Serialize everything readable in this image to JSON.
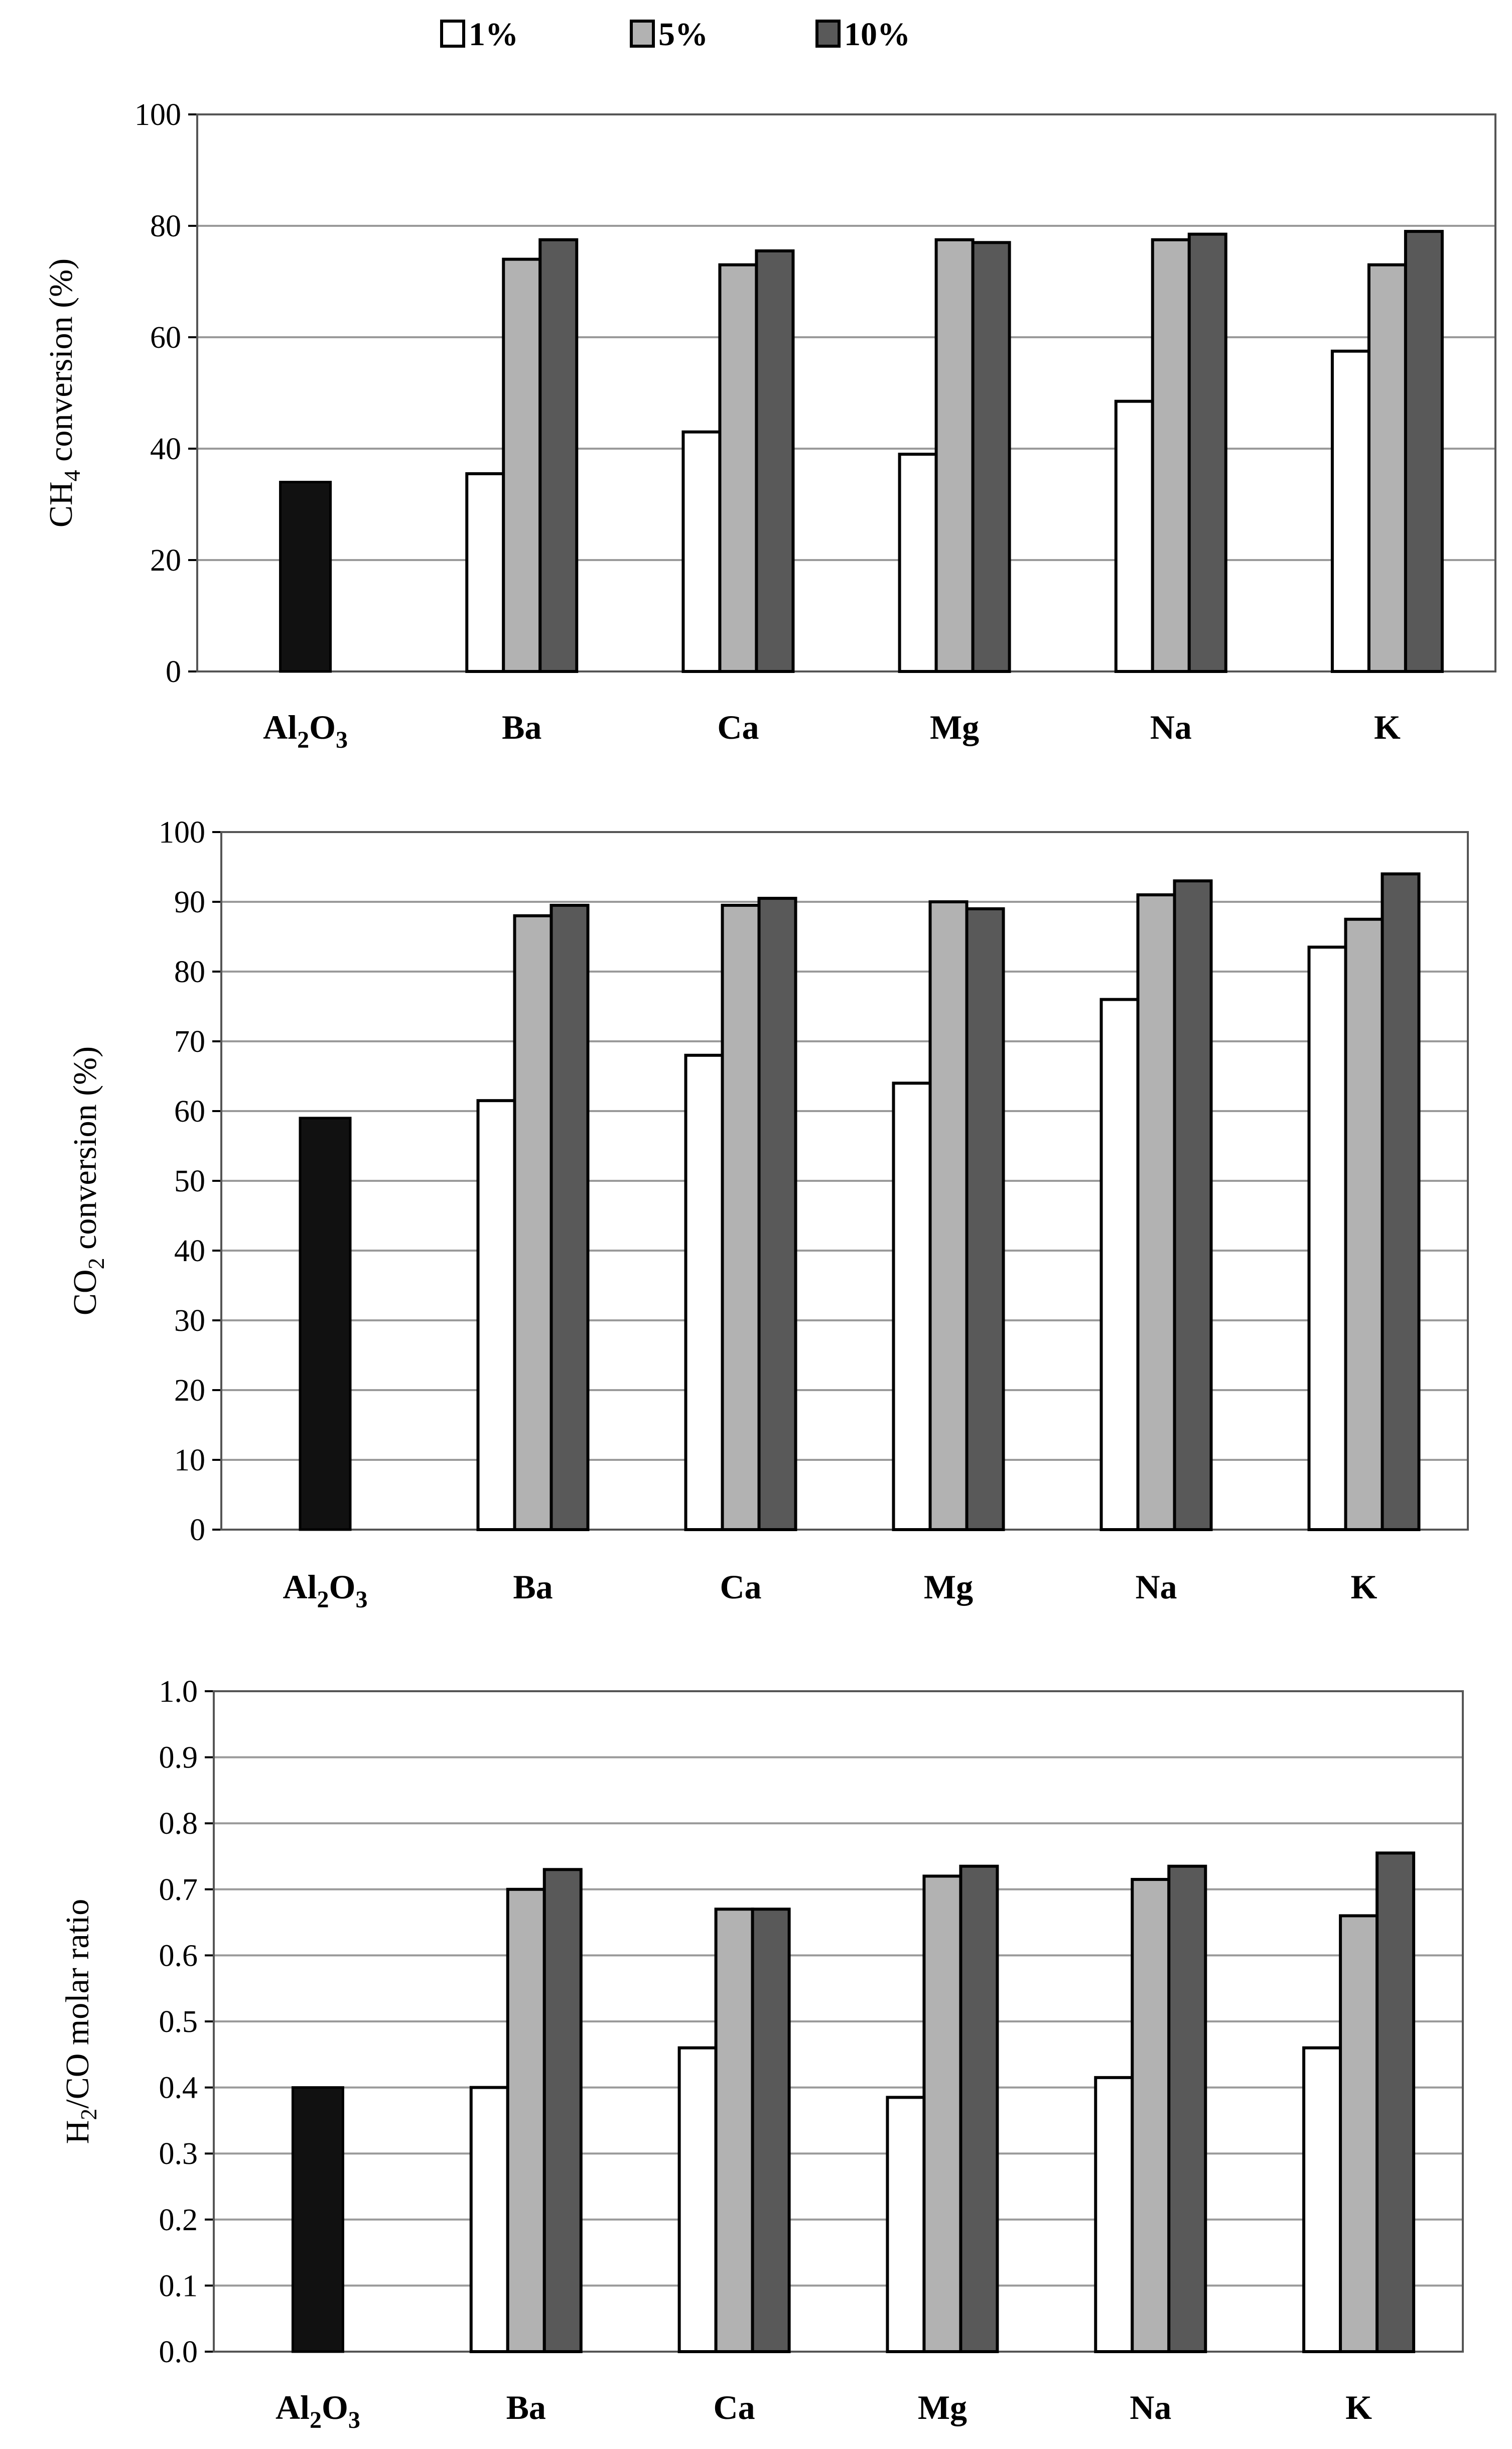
{
  "legend": [
    {
      "label": "1%",
      "color": "#ffffff"
    },
    {
      "label": "5%",
      "color": "#b2b2b2"
    },
    {
      "label": "10%",
      "color": "#595959"
    }
  ],
  "reference_color": "#111111",
  "chart_data": [
    {
      "type": "bar",
      "ylabel": {
        "main": "CH",
        "sub": "4",
        "rest": " conversion (%)"
      },
      "ylim": [
        0,
        100
      ],
      "yticks": [
        "0",
        "20",
        "40",
        "60",
        "80",
        "100"
      ],
      "categories": [
        {
          "main": "Al",
          "sub": "2",
          "main2": "O",
          "sub2": "3"
        },
        {
          "main": "Ba"
        },
        {
          "main": "Ca"
        },
        {
          "main": "Mg"
        },
        {
          "main": "Na"
        },
        {
          "main": "K"
        }
      ],
      "reference": {
        "name": "Al2O3",
        "value": 34
      },
      "series": [
        {
          "name": "1%",
          "values": [
            null,
            35.5,
            43,
            39,
            48.5,
            57.5
          ]
        },
        {
          "name": "5%",
          "values": [
            null,
            74,
            73,
            77.5,
            77.5,
            73
          ]
        },
        {
          "name": "10%",
          "values": [
            null,
            77.5,
            75.5,
            77,
            78.5,
            79
          ]
        }
      ]
    },
    {
      "type": "bar",
      "ylabel": {
        "main": "CO",
        "sub": "2",
        "rest": " conversion (%)"
      },
      "ylim": [
        0,
        100
      ],
      "yticks": [
        "0",
        "10",
        "20",
        "30",
        "40",
        "50",
        "60",
        "70",
        "80",
        "90",
        "100"
      ],
      "categories": [
        {
          "main": "Al",
          "sub": "2",
          "main2": "O",
          "sub2": "3"
        },
        {
          "main": "Ba"
        },
        {
          "main": "Ca"
        },
        {
          "main": "Mg"
        },
        {
          "main": "Na"
        },
        {
          "main": "K"
        }
      ],
      "reference": {
        "name": "Al2O3",
        "value": 59
      },
      "series": [
        {
          "name": "1%",
          "values": [
            null,
            61.5,
            68,
            64,
            76,
            83.5
          ]
        },
        {
          "name": "5%",
          "values": [
            null,
            88,
            89.5,
            90,
            91,
            87.5
          ]
        },
        {
          "name": "10%",
          "values": [
            null,
            89.5,
            90.5,
            89,
            93,
            94
          ]
        }
      ]
    },
    {
      "type": "bar",
      "ylabel": {
        "main": "H",
        "sub": "2",
        "rest": "/CO molar ratio"
      },
      "ylim": [
        0,
        1.0
      ],
      "yticks": [
        "0.0",
        "0.1",
        "0.2",
        "0.3",
        "0.4",
        "0.5",
        "0.6",
        "0.7",
        "0.8",
        "0.9",
        "1.0"
      ],
      "categories": [
        {
          "main": "Al",
          "sub": "2",
          "main2": "O",
          "sub2": "3"
        },
        {
          "main": "Ba"
        },
        {
          "main": "Ca"
        },
        {
          "main": "Mg"
        },
        {
          "main": "Na"
        },
        {
          "main": "K"
        }
      ],
      "reference": {
        "name": "Al2O3",
        "value": 0.4
      },
      "series": [
        {
          "name": "1%",
          "values": [
            null,
            0.4,
            0.46,
            0.385,
            0.415,
            0.46
          ]
        },
        {
          "name": "5%",
          "values": [
            null,
            0.7,
            0.67,
            0.72,
            0.715,
            0.66
          ]
        },
        {
          "name": "10%",
          "values": [
            null,
            0.73,
            0.67,
            0.735,
            0.735,
            0.755
          ]
        }
      ]
    }
  ]
}
